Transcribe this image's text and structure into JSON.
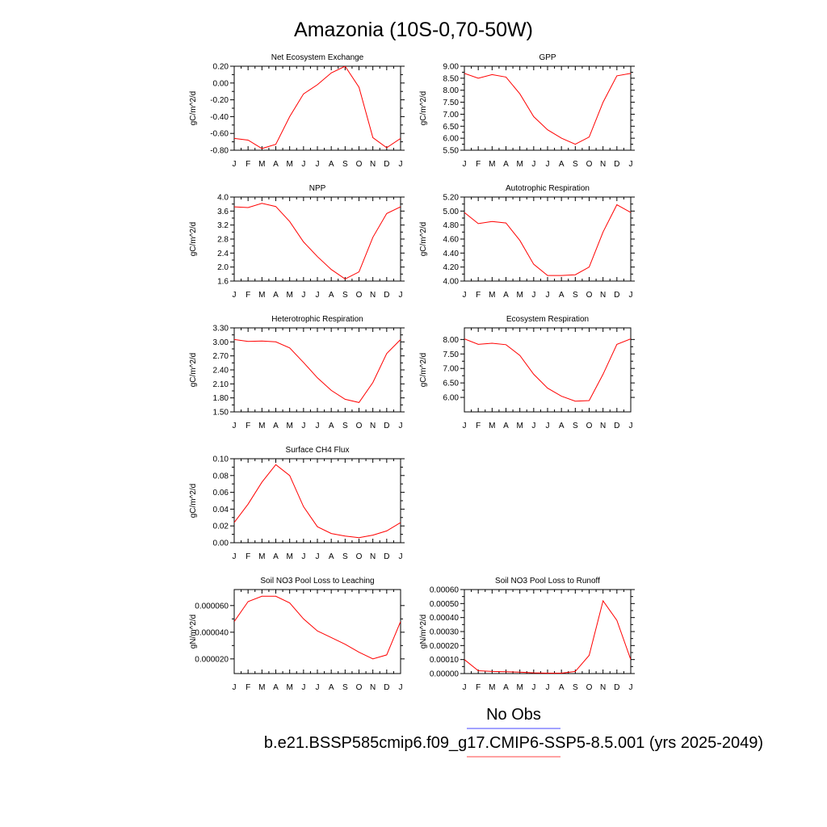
{
  "title": "Amazonia (10S-0,70-50W)",
  "months": [
    "J",
    "F",
    "M",
    "A",
    "M",
    "J",
    "J",
    "A",
    "S",
    "O",
    "N",
    "D",
    "J"
  ],
  "legend": {
    "obs_label": "No Obs",
    "obs_color": "#4444ff",
    "model_label": "b.e21.BSSP585cmip6.f09_g17.CMIP6-SSP5-8.5.001 (yrs 2025-2049)",
    "model_color": "#ff4444"
  },
  "line_color": "#ff0000",
  "chart_data": [
    {
      "id": "nee",
      "type": "line",
      "title": "Net Ecosystem Exchange",
      "ylabel": "gC/m^2/d",
      "ylim": [
        -0.8,
        0.2
      ],
      "yticks": [
        -0.8,
        -0.6,
        -0.4,
        -0.2,
        0.0,
        0.2
      ],
      "ytick_labels": [
        "-0.80",
        "-0.60",
        "-0.40",
        "-0.20",
        "0.00",
        "0.20"
      ],
      "values": [
        -0.66,
        -0.68,
        -0.78,
        -0.73,
        -0.4,
        -0.13,
        -0.02,
        0.12,
        0.2,
        -0.05,
        -0.65,
        -0.77,
        -0.66
      ]
    },
    {
      "id": "gpp",
      "type": "line",
      "title": "GPP",
      "ylabel": "gC/m^2/d",
      "ylim": [
        5.5,
        9.0
      ],
      "yticks": [
        5.5,
        6.0,
        6.5,
        7.0,
        7.5,
        8.0,
        8.5,
        9.0
      ],
      "ytick_labels": [
        "5.50",
        "6.00",
        "6.50",
        "7.00",
        "7.50",
        "8.00",
        "8.50",
        "9.00"
      ],
      "values": [
        8.7,
        8.5,
        8.65,
        8.55,
        7.85,
        6.9,
        6.35,
        6.0,
        5.75,
        6.05,
        7.5,
        8.6,
        8.7
      ]
    },
    {
      "id": "npp",
      "type": "line",
      "title": "NPP",
      "ylabel": "gC/m^2/d",
      "ylim": [
        1.6,
        4.0
      ],
      "yticks": [
        1.6,
        2.0,
        2.4,
        2.8,
        3.2,
        3.6,
        4.0
      ],
      "ytick_labels": [
        "1.6",
        "2.0",
        "2.4",
        "2.8",
        "3.2",
        "3.6",
        "4.0"
      ],
      "values": [
        3.72,
        3.7,
        3.82,
        3.73,
        3.3,
        2.72,
        2.3,
        1.93,
        1.66,
        1.86,
        2.85,
        3.53,
        3.72
      ]
    },
    {
      "id": "ar",
      "type": "line",
      "title": "Autotrophic Respiration",
      "ylabel": "gC/m^2/d",
      "ylim": [
        4.0,
        5.2
      ],
      "yticks": [
        4.0,
        4.2,
        4.4,
        4.6,
        4.8,
        5.0,
        5.2
      ],
      "ytick_labels": [
        "4.00",
        "4.20",
        "4.40",
        "4.60",
        "4.80",
        "5.00",
        "5.20"
      ],
      "values": [
        4.98,
        4.82,
        4.85,
        4.83,
        4.58,
        4.24,
        4.08,
        4.08,
        4.09,
        4.2,
        4.7,
        5.09,
        4.98
      ]
    },
    {
      "id": "hr",
      "type": "line",
      "title": "Heterotrophic Respiration",
      "ylabel": "gC/m^2/d",
      "ylim": [
        1.5,
        3.3
      ],
      "yticks": [
        1.5,
        1.8,
        2.1,
        2.4,
        2.7,
        3.0,
        3.3
      ],
      "ytick_labels": [
        "1.50",
        "1.80",
        "2.10",
        "2.40",
        "2.70",
        "3.00",
        "3.30"
      ],
      "values": [
        3.05,
        3.01,
        3.02,
        3.0,
        2.87,
        2.56,
        2.23,
        1.96,
        1.77,
        1.7,
        2.13,
        2.75,
        3.05
      ]
    },
    {
      "id": "er",
      "type": "line",
      "title": "Ecosystem Respiration",
      "ylabel": "gC/m^2/d",
      "ylim": [
        5.5,
        8.4
      ],
      "yticks": [
        6.0,
        6.5,
        7.0,
        7.5,
        8.0
      ],
      "ytick_labels": [
        "6.00",
        "6.50",
        "7.00",
        "7.50",
        "8.00"
      ],
      "values": [
        8.02,
        7.83,
        7.87,
        7.82,
        7.45,
        6.8,
        6.32,
        6.04,
        5.87,
        5.89,
        6.8,
        7.83,
        8.02
      ]
    },
    {
      "id": "ch4",
      "type": "line",
      "title": "Surface CH4 Flux",
      "ylabel": "gC/m^2/d",
      "ylim": [
        0.0,
        0.1
      ],
      "yticks": [
        0.0,
        0.02,
        0.04,
        0.06,
        0.08,
        0.1
      ],
      "ytick_labels": [
        "0.00",
        "0.02",
        "0.04",
        "0.06",
        "0.08",
        "0.10"
      ],
      "values": [
        0.024,
        0.046,
        0.072,
        0.093,
        0.08,
        0.043,
        0.019,
        0.011,
        0.008,
        0.006,
        0.009,
        0.014,
        0.024
      ]
    },
    {
      "id": "leach",
      "type": "line",
      "title": "Soil NO3 Pool Loss to Leaching",
      "ylabel": "gN/m^2/d",
      "ylim": [
        9e-06,
        7.2e-05
      ],
      "yticks": [
        2e-05,
        4e-05,
        6e-05
      ],
      "ytick_labels": [
        "0.000020",
        "0.000040",
        "0.000060"
      ],
      "values": [
        4.8e-05,
        6.3e-05,
        6.7e-05,
        6.7e-05,
        6.2e-05,
        5e-05,
        4.1e-05,
        3.6e-05,
        3.1e-05,
        2.5e-05,
        2e-05,
        2.3e-05,
        4.8e-05
      ]
    },
    {
      "id": "runoff",
      "type": "line",
      "title": "Soil NO3 Pool Loss to Runoff",
      "ylabel": "gN/m^2/d",
      "ylim": [
        0.0,
        0.0006
      ],
      "yticks": [
        0.0,
        0.0001,
        0.0002,
        0.0003,
        0.0004,
        0.0005,
        0.0006
      ],
      "ytick_labels": [
        "0.00000",
        "0.00010",
        "0.00020",
        "0.00030",
        "0.00040",
        "0.00050",
        "0.00060"
      ],
      "values": [
        0.0001,
        2e-05,
        1.5e-05,
        1.3e-05,
        1e-05,
        5e-06,
        3e-06,
        3e-06,
        1.5e-05,
        0.00013,
        0.00052,
        0.00038,
        0.0001
      ]
    }
  ]
}
